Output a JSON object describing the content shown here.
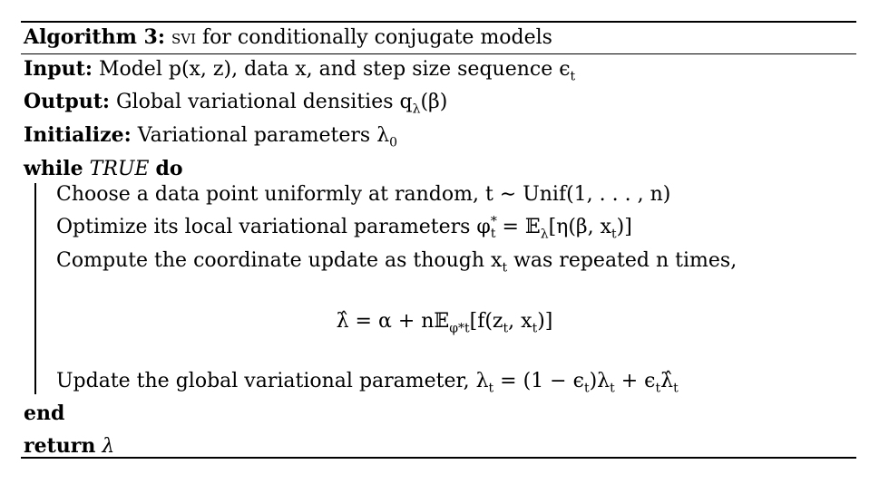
{
  "algorithm": {
    "header_bold": "Algorithm 3:",
    "header_smallcaps": "svi",
    "header_rest": " for conditionally conjugate models"
  },
  "input": {
    "label": "Input:",
    "text": "Model p(x, z), data x, and step size sequence ϵ",
    "sub": "t"
  },
  "output": {
    "label": "Output:",
    "text": "Global variational densities q",
    "sub": "λ",
    "tail": "(β)"
  },
  "initialize": {
    "label": "Initialize:",
    "text": "Variational parameters λ",
    "sub": "0"
  },
  "while_kw": "while",
  "while_cond": "TRUE",
  "do_kw": "do",
  "steps": {
    "s1": "Choose a data point uniformly at random, t ∼ Unif(1, . . . , n)",
    "s2_pre": "Optimize its local variational parameters φ",
    "s2_post": " = 𝔼",
    "s2_sub": "λ",
    "s2_tail": "[η(β, x",
    "s2_tail_sub": "t",
    "s2_end": ")]",
    "s3_pre": "Compute the coordinate update as though x",
    "s3_sub": "t",
    "s3_post": " was repeated n times,",
    "eq_lhs": "λ̂ = α + n𝔼",
    "eq_sub": "φ*t",
    "eq_rhs": "[f(z",
    "eq_sub2": "t",
    "eq_mid": ", x",
    "eq_sub3": "t",
    "eq_end": ")]",
    "s4_pre": "Update the global variational parameter, λ",
    "s4_sub": "t",
    "s4_mid": " = (1 − ϵ",
    "s4_sub2": "t",
    "s4_mid2": ")λ",
    "s4_sub3": "t",
    "s4_mid3": " + ϵ",
    "s4_sub4": "t",
    "s4_mid4": "λ̂",
    "s4_sub5": "t"
  },
  "end_kw": "end",
  "return_kw": "return",
  "return_val": "λ"
}
